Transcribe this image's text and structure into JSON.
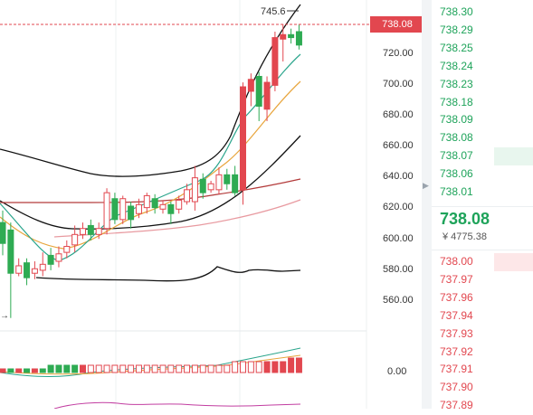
{
  "chart": {
    "current_price_tag": "738.08",
    "high_marker": "745.6",
    "price_axis": [
      "720.00",
      "700.00",
      "680.00",
      "660.00",
      "640.00",
      "620.00",
      "600.00",
      "580.00",
      "560.00"
    ],
    "indicator_axis": "0.00"
  },
  "chart_data": {
    "type": "candlestick",
    "ylim": [
      546,
      760
    ],
    "candles": [
      {
        "o": 612,
        "c": 598,
        "h": 620,
        "l": 590
      },
      {
        "o": 607,
        "c": 578,
        "h": 612,
        "l": 548
      },
      {
        "o": 578,
        "c": 583,
        "h": 588,
        "l": 576
      },
      {
        "o": 585,
        "c": 575,
        "h": 588,
        "l": 570
      },
      {
        "o": 578,
        "c": 581,
        "h": 586,
        "l": 574
      },
      {
        "o": 580,
        "c": 584,
        "h": 592,
        "l": 576
      },
      {
        "o": 590,
        "c": 584,
        "h": 595,
        "l": 580
      },
      {
        "o": 586,
        "c": 591,
        "h": 596,
        "l": 582
      },
      {
        "o": 592,
        "c": 596,
        "h": 600,
        "l": 588
      },
      {
        "o": 597,
        "c": 604,
        "h": 610,
        "l": 592
      },
      {
        "o": 604,
        "c": 608,
        "h": 612,
        "l": 601
      },
      {
        "o": 610,
        "c": 604,
        "h": 614,
        "l": 600
      },
      {
        "o": 604,
        "c": 608,
        "h": 612,
        "l": 601
      },
      {
        "o": 608,
        "c": 632,
        "h": 635,
        "l": 604
      },
      {
        "o": 628,
        "c": 614,
        "h": 632,
        "l": 611
      },
      {
        "o": 614,
        "c": 628,
        "h": 630,
        "l": 611
      },
      {
        "o": 623,
        "c": 614,
        "h": 626,
        "l": 608
      },
      {
        "o": 618,
        "c": 624,
        "h": 628,
        "l": 615
      },
      {
        "o": 622,
        "c": 630,
        "h": 632,
        "l": 618
      },
      {
        "o": 628,
        "c": 622,
        "h": 631,
        "l": 618
      },
      {
        "o": 621,
        "c": 624,
        "h": 627,
        "l": 618
      },
      {
        "o": 624,
        "c": 618,
        "h": 626,
        "l": 611
      },
      {
        "o": 621,
        "c": 627,
        "h": 630,
        "l": 618
      },
      {
        "o": 626,
        "c": 634,
        "h": 638,
        "l": 624
      },
      {
        "o": 626,
        "c": 642,
        "h": 650,
        "l": 620
      },
      {
        "o": 641,
        "c": 632,
        "h": 645,
        "l": 628
      },
      {
        "o": 634,
        "c": 638,
        "h": 640,
        "l": 632
      },
      {
        "o": 634,
        "c": 644,
        "h": 649,
        "l": 631
      },
      {
        "o": 644,
        "c": 638,
        "h": 648,
        "l": 634
      },
      {
        "o": 644,
        "c": 632,
        "h": 650,
        "l": 630
      },
      {
        "o": 634,
        "c": 703,
        "h": 706,
        "l": 624
      },
      {
        "o": 700,
        "c": 708,
        "h": 712,
        "l": 690
      },
      {
        "o": 710,
        "c": 690,
        "h": 713,
        "l": 680
      },
      {
        "o": 688,
        "c": 706,
        "h": 710,
        "l": 680
      },
      {
        "o": 704,
        "c": 736,
        "h": 740,
        "l": 700
      },
      {
        "o": 735,
        "c": 738,
        "h": 745,
        "l": 720
      },
      {
        "o": 738,
        "c": 736,
        "h": 742,
        "l": 732
      },
      {
        "o": 740,
        "c": 731,
        "h": 745,
        "l": 728
      }
    ],
    "volume": [
      1,
      1,
      1,
      1,
      1,
      1,
      2,
      2,
      2,
      2,
      2,
      2,
      2,
      2,
      2,
      2,
      2,
      2,
      2,
      2,
      2,
      2,
      2,
      2,
      2,
      2,
      2,
      2,
      2,
      3,
      3,
      3,
      3,
      3,
      3,
      3,
      4,
      4
    ],
    "volume_colors": [
      "r",
      "g",
      "r",
      "g",
      "r",
      "g",
      "g",
      "g",
      "g",
      "g",
      "r",
      "r",
      "r",
      "r",
      "r",
      "r",
      "r",
      "r",
      "r",
      "r",
      "r",
      "r",
      "r",
      "r",
      "r",
      "r",
      "r",
      "r",
      "r",
      "r",
      "r",
      "r",
      "r",
      "r",
      "r",
      "r",
      "r",
      "r"
    ],
    "colors": {
      "up": "#e2474f",
      "down": "#2eab53"
    }
  },
  "orderbook": {
    "asks": [
      {
        "price": "738.30",
        "depth": 0
      },
      {
        "price": "738.29",
        "depth": 0
      },
      {
        "price": "738.25",
        "depth": 0
      },
      {
        "price": "738.24",
        "depth": 0
      },
      {
        "price": "738.23",
        "depth": 0
      },
      {
        "price": "738.18",
        "depth": 0
      },
      {
        "price": "738.09",
        "depth": 0
      },
      {
        "price": "738.08",
        "depth": 0
      },
      {
        "price": "738.07",
        "depth": 0.38
      },
      {
        "price": "738.06",
        "depth": 0
      },
      {
        "price": "738.01",
        "depth": 0
      }
    ],
    "last_price": "738.08",
    "amount": "¥ 4775.38",
    "bids": [
      {
        "price": "738.00",
        "depth": 0.38
      },
      {
        "price": "737.97",
        "depth": 0
      },
      {
        "price": "737.96",
        "depth": 0
      },
      {
        "price": "737.94",
        "depth": 0
      },
      {
        "price": "737.93",
        "depth": 0
      },
      {
        "price": "737.92",
        "depth": 0
      },
      {
        "price": "737.91",
        "depth": 0
      },
      {
        "price": "737.90",
        "depth": 0
      },
      {
        "price": "737.89",
        "depth": 0
      }
    ],
    "colors": {
      "ask": "#1ea35a",
      "bid": "#e2474f",
      "ask_bg": "#e8f6ee",
      "bid_bg": "#fde7e8"
    }
  }
}
